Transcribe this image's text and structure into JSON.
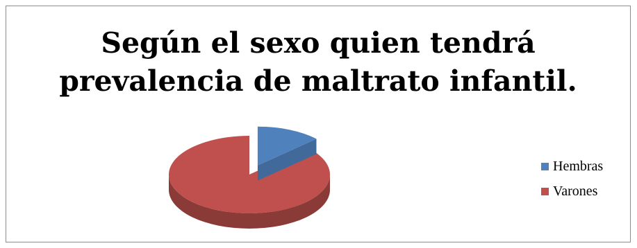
{
  "chart_data": {
    "type": "pie",
    "title_lines": [
      "Según el sexo quien tendrá",
      "prevalencia de maltrato infantil."
    ],
    "categories": [
      "Hembras",
      "Varones"
    ],
    "values": [
      13,
      87
    ],
    "colors": [
      "#4F81BD",
      "#C0504D"
    ],
    "style": "3d-exploded",
    "legend_position": "right"
  }
}
